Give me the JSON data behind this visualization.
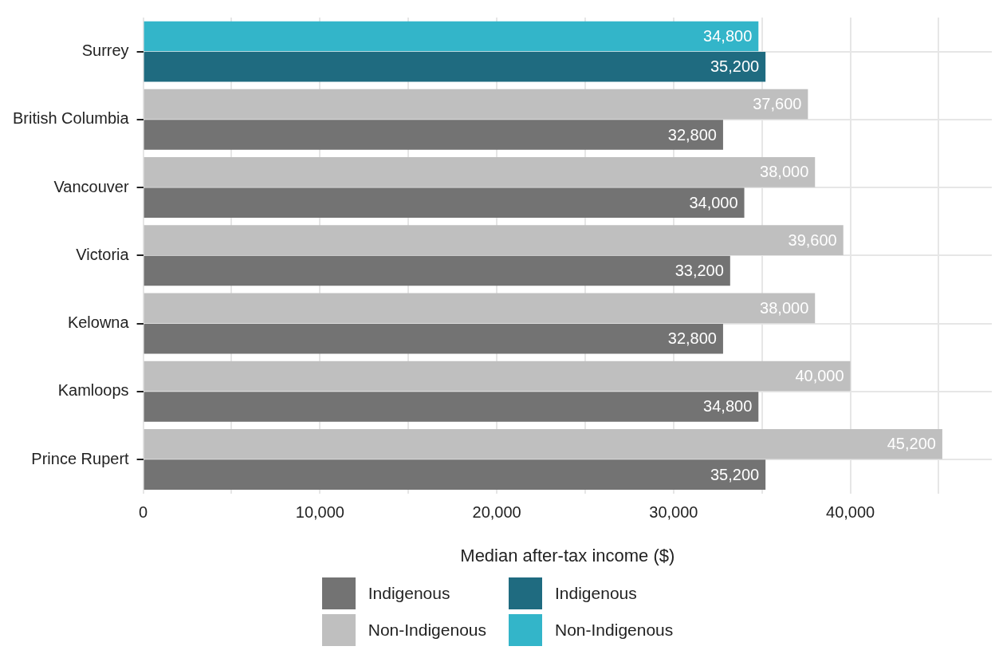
{
  "chart_data": {
    "type": "bar",
    "orientation": "horizontal",
    "xlabel": "Median after-tax income ($)",
    "categories": [
      "Surrey",
      "British Columbia",
      "Vancouver",
      "Victoria",
      "Kelowna",
      "Kamloops",
      "Prince Rupert"
    ],
    "series": [
      {
        "name": "Indigenous",
        "colors": [
          "#1f6b80",
          "#737373",
          "#737373",
          "#737373",
          "#737373",
          "#737373",
          "#737373"
        ],
        "values": [
          35200,
          32800,
          34000,
          33200,
          32800,
          34800,
          35200
        ],
        "value_labels": [
          "35,200",
          "32,800",
          "34,000",
          "33,200",
          "32,800",
          "34,800",
          "35,200"
        ]
      },
      {
        "name": "Non-Indigenous",
        "colors": [
          "#33b5c9",
          "#bfbfbf",
          "#bfbfbf",
          "#bfbfbf",
          "#bfbfbf",
          "#bfbfbf",
          "#bfbfbf"
        ],
        "values": [
          34800,
          37600,
          38000,
          39600,
          38000,
          40000,
          45200
        ],
        "value_labels": [
          "34,800",
          "37,600",
          "38,000",
          "39,600",
          "38,000",
          "40,000",
          "45,200"
        ]
      }
    ],
    "xlim": [
      0,
      48000
    ],
    "xticks": [
      0,
      {
        "value": 5000,
        "label": null
      },
      {
        "value": 10000,
        "label": "10,000"
      },
      {
        "value": 15000,
        "label": null
      },
      {
        "value": 20000,
        "label": "20,000"
      },
      {
        "value": 25000,
        "label": null
      },
      {
        "value": 30000,
        "label": "30,000"
      },
      {
        "value": 35000,
        "label": null
      },
      {
        "value": 40000,
        "label": "40,000"
      },
      {
        "value": 45000,
        "label": null
      }
    ],
    "grid": true,
    "legend": "bottom"
  }
}
